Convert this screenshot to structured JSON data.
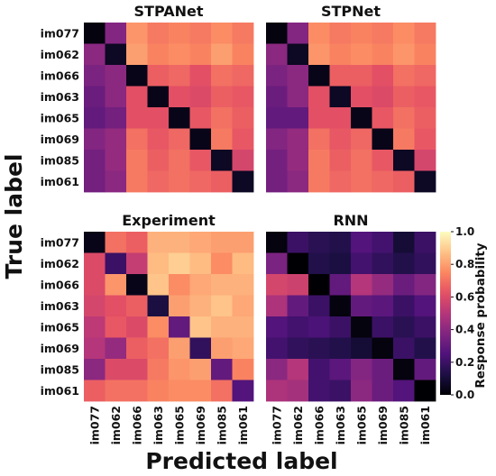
{
  "labels": {
    "ylabel": "True label",
    "xlabel": "Predicted label",
    "colorbar_label": "Response probability"
  },
  "chart_data": {
    "type": "heatmap",
    "xlabel": "Predicted label",
    "ylabel": "True label",
    "categories": [
      "im077",
      "im062",
      "im066",
      "im063",
      "im065",
      "im069",
      "im085",
      "im061"
    ],
    "colorbar": {
      "label": "Response probability",
      "colormap": "magma",
      "range": [
        0.0,
        1.0
      ],
      "ticks": [
        "0.0",
        "0.2",
        "0.4",
        "0.6",
        "0.8",
        "1.0"
      ]
    },
    "panels": [
      {
        "title": "STPANet",
        "matrix": [
          [
            0.02,
            0.38,
            0.78,
            0.72,
            0.74,
            0.72,
            0.76,
            0.72
          ],
          [
            0.4,
            0.06,
            0.8,
            0.74,
            0.76,
            0.74,
            0.8,
            0.74
          ],
          [
            0.36,
            0.4,
            0.04,
            0.66,
            0.68,
            0.62,
            0.7,
            0.68
          ],
          [
            0.32,
            0.4,
            0.62,
            0.04,
            0.62,
            0.6,
            0.66,
            0.64
          ],
          [
            0.3,
            0.34,
            0.62,
            0.62,
            0.04,
            0.64,
            0.7,
            0.66
          ],
          [
            0.38,
            0.42,
            0.7,
            0.64,
            0.68,
            0.04,
            0.72,
            0.64
          ],
          [
            0.34,
            0.42,
            0.72,
            0.66,
            0.7,
            0.64,
            0.06,
            0.58
          ],
          [
            0.34,
            0.4,
            0.72,
            0.68,
            0.7,
            0.68,
            0.66,
            0.06
          ]
        ]
      },
      {
        "title": "STPNet",
        "matrix": [
          [
            0.02,
            0.38,
            0.76,
            0.72,
            0.74,
            0.72,
            0.76,
            0.72
          ],
          [
            0.4,
            0.06,
            0.78,
            0.74,
            0.76,
            0.74,
            0.78,
            0.74
          ],
          [
            0.36,
            0.4,
            0.04,
            0.66,
            0.66,
            0.62,
            0.7,
            0.68
          ],
          [
            0.32,
            0.4,
            0.62,
            0.06,
            0.62,
            0.6,
            0.66,
            0.64
          ],
          [
            0.3,
            0.3,
            0.62,
            0.62,
            0.04,
            0.64,
            0.7,
            0.66
          ],
          [
            0.38,
            0.42,
            0.7,
            0.64,
            0.68,
            0.04,
            0.72,
            0.64
          ],
          [
            0.34,
            0.42,
            0.72,
            0.66,
            0.7,
            0.64,
            0.06,
            0.58
          ],
          [
            0.34,
            0.4,
            0.72,
            0.68,
            0.7,
            0.68,
            0.66,
            0.06
          ]
        ]
      },
      {
        "title": "Experiment",
        "matrix": [
          [
            0.04,
            0.7,
            0.66,
            0.84,
            0.84,
            0.82,
            0.8,
            0.8
          ],
          [
            0.6,
            0.2,
            0.54,
            0.86,
            0.9,
            0.86,
            0.76,
            0.86
          ],
          [
            0.6,
            0.78,
            0.04,
            0.88,
            0.76,
            0.82,
            0.84,
            0.84
          ],
          [
            0.58,
            0.62,
            0.66,
            0.12,
            0.8,
            0.84,
            0.88,
            0.82
          ],
          [
            0.52,
            0.64,
            0.6,
            0.76,
            0.3,
            0.88,
            0.84,
            0.84
          ],
          [
            0.5,
            0.42,
            0.66,
            0.7,
            0.8,
            0.18,
            0.8,
            0.82
          ],
          [
            0.4,
            0.6,
            0.6,
            0.72,
            0.78,
            0.8,
            0.3,
            0.74
          ],
          [
            0.66,
            0.7,
            0.7,
            0.74,
            0.76,
            0.76,
            0.7,
            0.26
          ]
        ]
      },
      {
        "title": "RNN",
        "matrix": [
          [
            0.02,
            0.2,
            0.16,
            0.14,
            0.26,
            0.22,
            0.1,
            0.2
          ],
          [
            0.36,
            0.0,
            0.14,
            0.12,
            0.22,
            0.18,
            0.14,
            0.18
          ],
          [
            0.58,
            0.56,
            0.0,
            0.3,
            0.5,
            0.42,
            0.32,
            0.38
          ],
          [
            0.48,
            0.3,
            0.2,
            0.02,
            0.3,
            0.28,
            0.2,
            0.26
          ],
          [
            0.26,
            0.22,
            0.24,
            0.2,
            0.02,
            0.2,
            0.16,
            0.2
          ],
          [
            0.22,
            0.18,
            0.16,
            0.14,
            0.1,
            0.02,
            0.2,
            0.14
          ],
          [
            0.4,
            0.5,
            0.22,
            0.28,
            0.38,
            0.32,
            0.02,
            0.3
          ],
          [
            0.48,
            0.46,
            0.22,
            0.2,
            0.4,
            0.32,
            0.26,
            0.0
          ]
        ]
      }
    ]
  }
}
